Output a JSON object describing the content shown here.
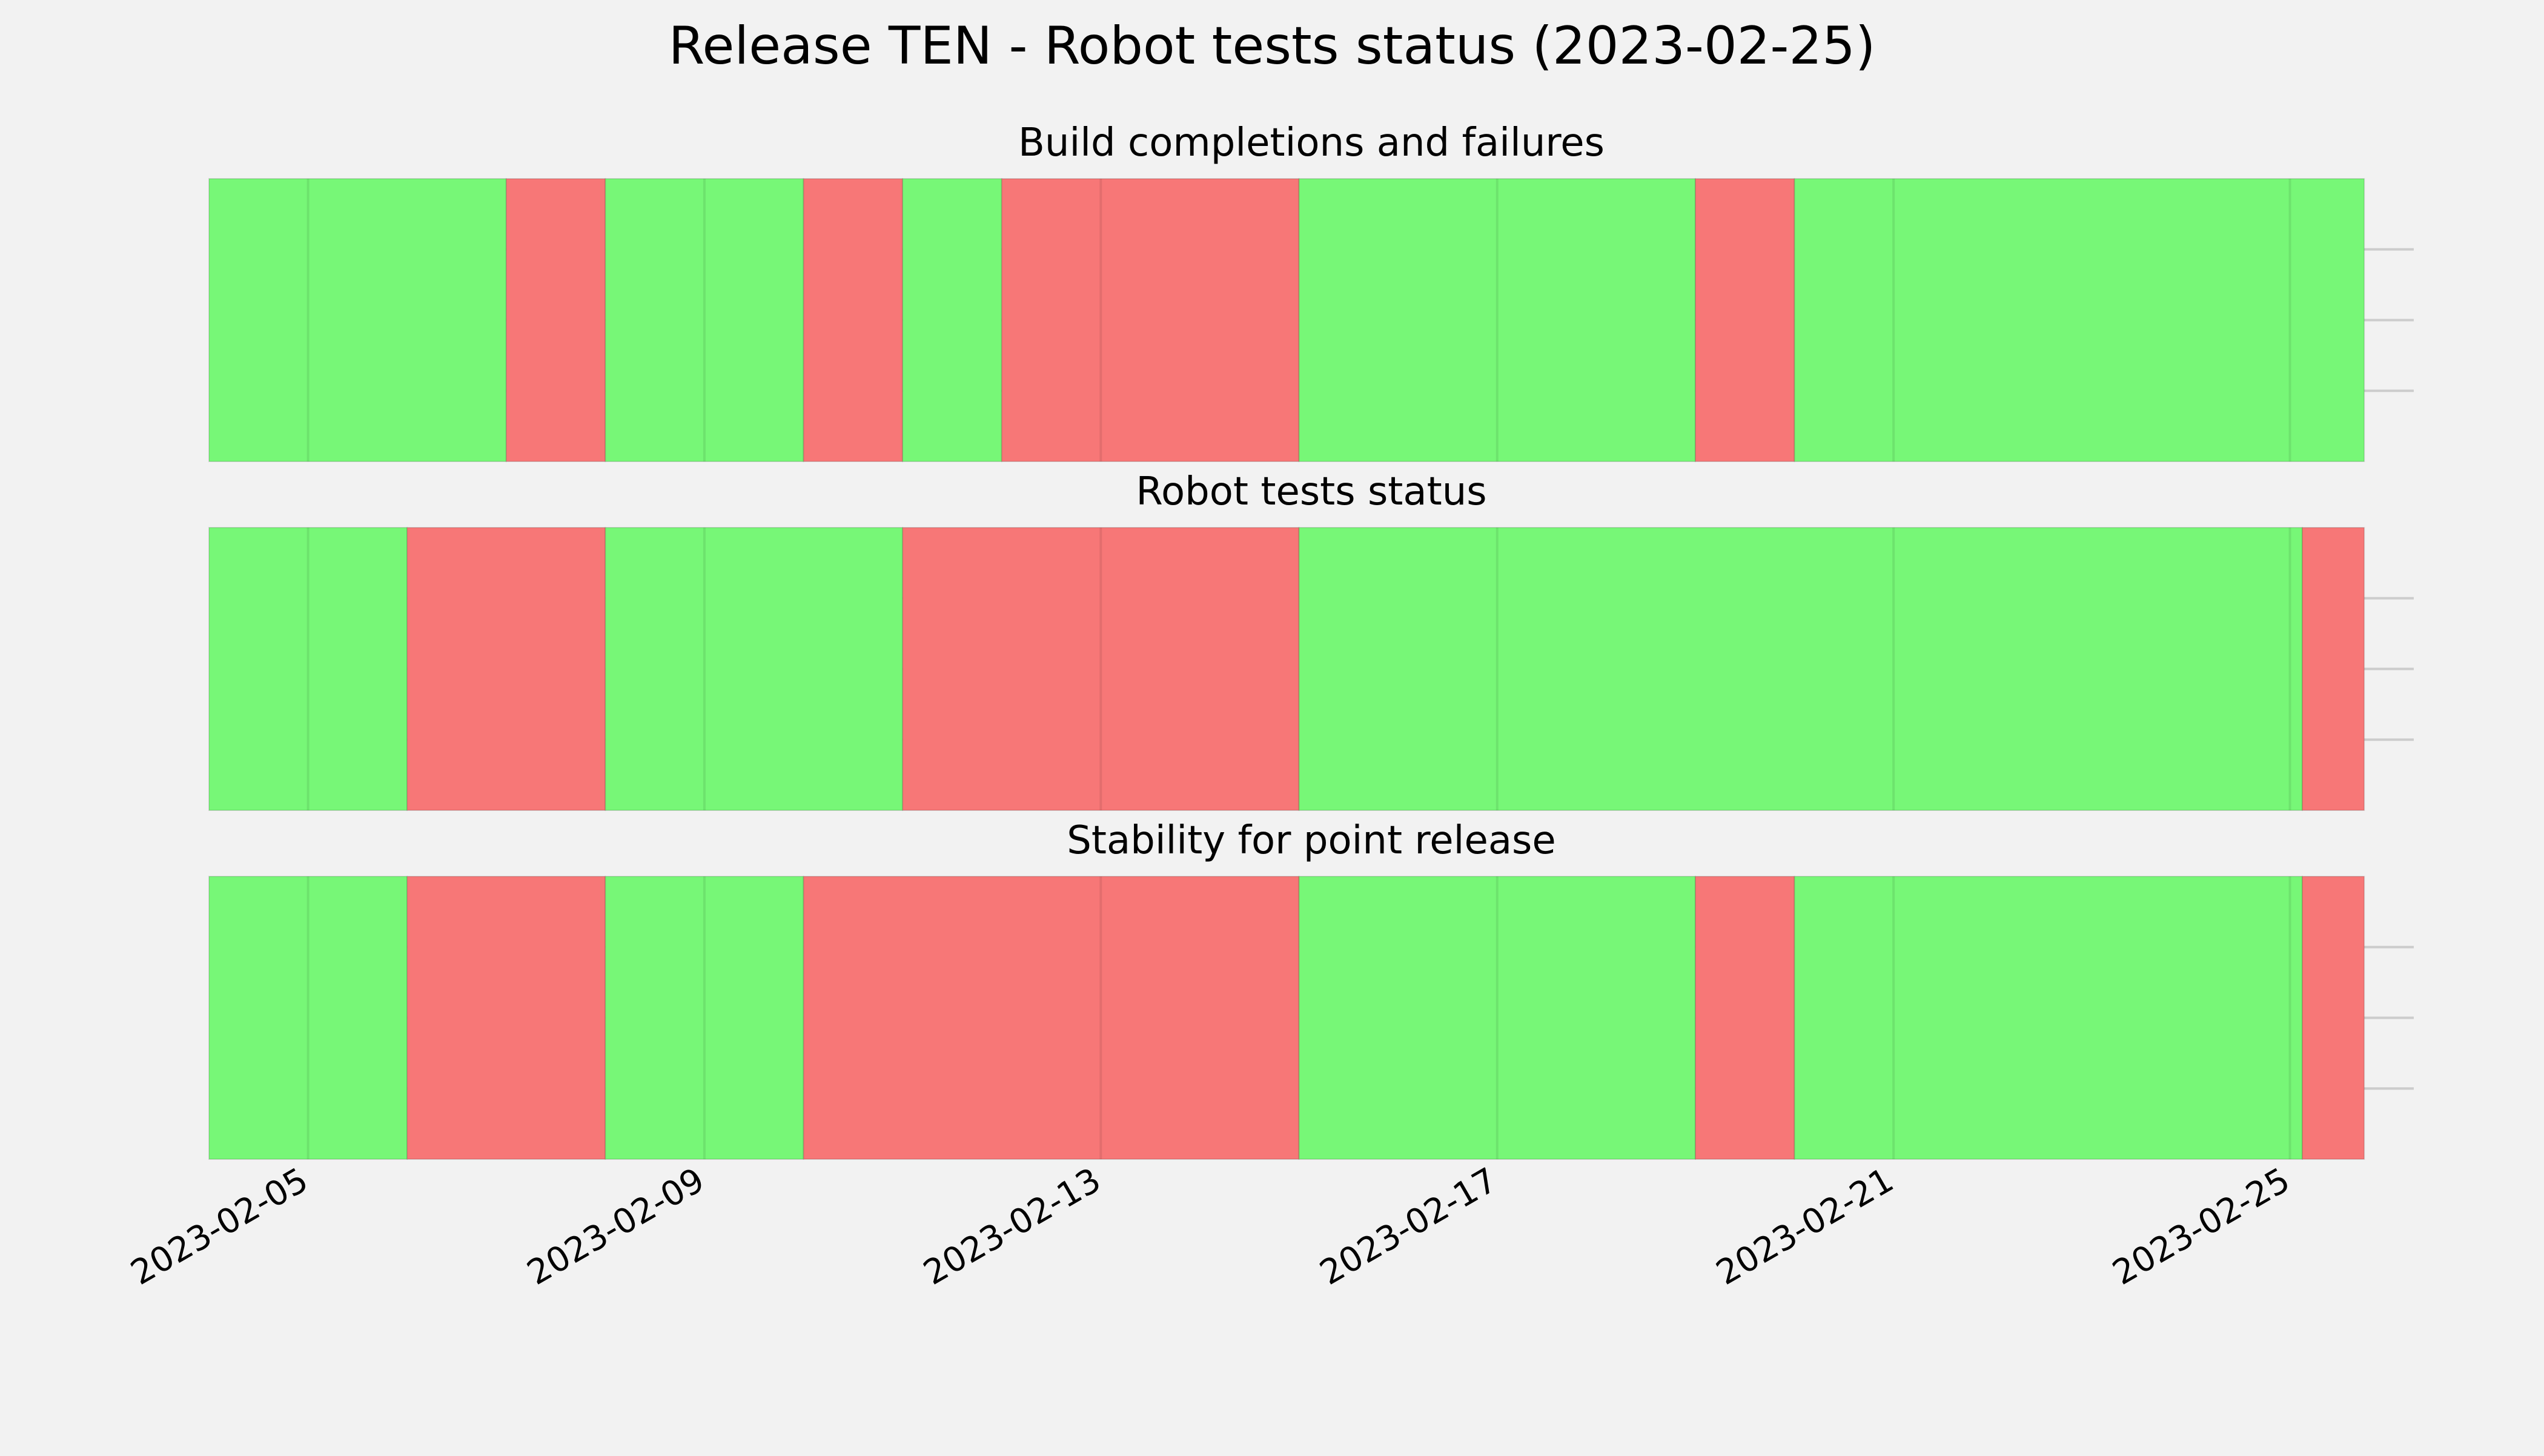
{
  "chart_data": {
    "type": "timeline",
    "title": "Release TEN - Robot tests status (2023-02-25)",
    "x_type": "date",
    "xlim": [
      "2023-02-04",
      "2023-02-25T18:00"
    ],
    "x_range_visible": [
      "2023-02-04T00:00",
      "2023-02-26T06:00"
    ],
    "x_ticks": [
      "2023-02-05",
      "2023-02-09",
      "2023-02-13",
      "2023-02-17",
      "2023-02-21",
      "2023-02-25"
    ],
    "grid": true,
    "colors": {
      "pass": "#77f777",
      "fail": "#f77777",
      "background": "#f2f2f2",
      "grid": "#cccccc"
    },
    "panels": [
      {
        "title": "Build completions and failures",
        "segments": [
          {
            "start": "2023-02-04",
            "end": "2023-02-07",
            "status": "pass"
          },
          {
            "start": "2023-02-07",
            "end": "2023-02-08",
            "status": "fail"
          },
          {
            "start": "2023-02-08",
            "end": "2023-02-10",
            "status": "pass"
          },
          {
            "start": "2023-02-10",
            "end": "2023-02-11",
            "status": "fail"
          },
          {
            "start": "2023-02-11",
            "end": "2023-02-12",
            "status": "pass"
          },
          {
            "start": "2023-02-12",
            "end": "2023-02-15",
            "status": "fail"
          },
          {
            "start": "2023-02-15",
            "end": "2023-02-19",
            "status": "pass"
          },
          {
            "start": "2023-02-19",
            "end": "2023-02-20",
            "status": "fail"
          },
          {
            "start": "2023-02-20",
            "end": "2023-02-25T18:00",
            "status": "pass"
          }
        ]
      },
      {
        "title": "Robot tests status",
        "segments": [
          {
            "start": "2023-02-04",
            "end": "2023-02-06",
            "status": "pass"
          },
          {
            "start": "2023-02-06",
            "end": "2023-02-08",
            "status": "fail"
          },
          {
            "start": "2023-02-08",
            "end": "2023-02-11",
            "status": "pass"
          },
          {
            "start": "2023-02-11",
            "end": "2023-02-15",
            "status": "fail"
          },
          {
            "start": "2023-02-15",
            "end": "2023-02-25T03:00",
            "status": "pass"
          },
          {
            "start": "2023-02-25T03:00",
            "end": "2023-02-25T18:00",
            "status": "fail"
          }
        ]
      },
      {
        "title": "Stability for point release",
        "segments": [
          {
            "start": "2023-02-04",
            "end": "2023-02-06",
            "status": "pass"
          },
          {
            "start": "2023-02-06",
            "end": "2023-02-08",
            "status": "fail"
          },
          {
            "start": "2023-02-08",
            "end": "2023-02-10",
            "status": "pass"
          },
          {
            "start": "2023-02-10",
            "end": "2023-02-15",
            "status": "fail"
          },
          {
            "start": "2023-02-15",
            "end": "2023-02-19",
            "status": "pass"
          },
          {
            "start": "2023-02-19",
            "end": "2023-02-20",
            "status": "fail"
          },
          {
            "start": "2023-02-20",
            "end": "2023-02-25T03:00",
            "status": "pass"
          },
          {
            "start": "2023-02-25T03:00",
            "end": "2023-02-25T18:00",
            "status": "fail"
          }
        ]
      }
    ]
  }
}
